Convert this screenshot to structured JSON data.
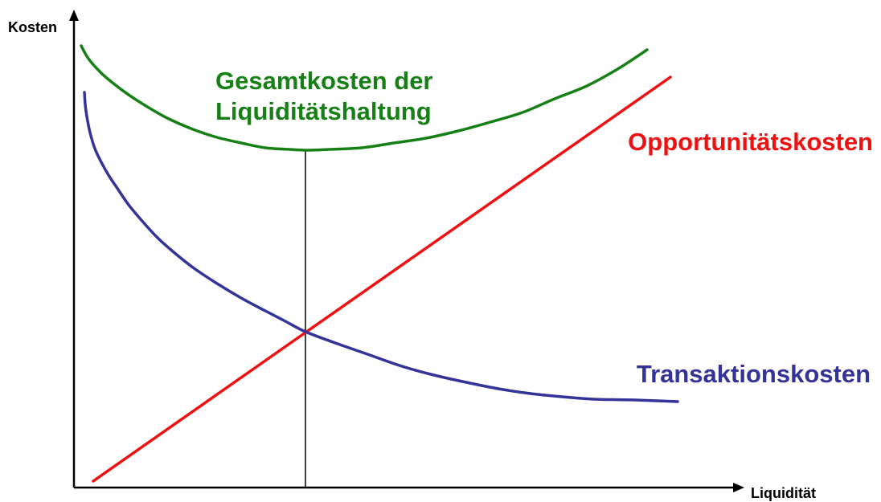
{
  "chart_data": {
    "type": "line",
    "title": "",
    "xlabel": "Liquidität",
    "ylabel": "Kosten",
    "grid": false,
    "legend": "none",
    "series": [
      {
        "name": "Gesamtkosten der Liquiditätshaltung",
        "label_lines": [
          "Gesamtkosten der",
          "Liquiditätshaltung"
        ],
        "color": "#168016",
        "points": [
          [
            101,
            57
          ],
          [
            110,
            73
          ],
          [
            125,
            90
          ],
          [
            140,
            103
          ],
          [
            160,
            118
          ],
          [
            185,
            134
          ],
          [
            210,
            148
          ],
          [
            240,
            161
          ],
          [
            270,
            171
          ],
          [
            300,
            178
          ],
          [
            330,
            184
          ],
          [
            360,
            186
          ],
          [
            380,
            187
          ],
          [
            410,
            186
          ],
          [
            450,
            184
          ],
          [
            490,
            178
          ],
          [
            530,
            172
          ],
          [
            570,
            163
          ],
          [
            610,
            152
          ],
          [
            650,
            140
          ],
          [
            690,
            123
          ],
          [
            730,
            107
          ],
          [
            770,
            85
          ],
          [
            805,
            62
          ]
        ]
      },
      {
        "name": "Opportunitätskosten",
        "label_lines": [
          "Opportunitätskosten"
        ],
        "color": "#ee1111",
        "points": [
          [
            116,
            599
          ],
          [
            380,
            414
          ],
          [
            834,
            96
          ]
        ]
      },
      {
        "name": "Transaktionskosten",
        "label_lines": [
          "Transaktionskosten"
        ],
        "color": "#333399",
        "points": [
          [
            105,
            115
          ],
          [
            106,
            130
          ],
          [
            108,
            145
          ],
          [
            112,
            165
          ],
          [
            118,
            185
          ],
          [
            125,
            200
          ],
          [
            135,
            218
          ],
          [
            145,
            233
          ],
          [
            160,
            255
          ],
          [
            175,
            273
          ],
          [
            195,
            295
          ],
          [
            215,
            313
          ],
          [
            240,
            333
          ],
          [
            270,
            353
          ],
          [
            300,
            371
          ],
          [
            330,
            387
          ],
          [
            355,
            400
          ],
          [
            380,
            413
          ],
          [
            420,
            428
          ],
          [
            460,
            442
          ],
          [
            500,
            456
          ],
          [
            540,
            467
          ],
          [
            580,
            476
          ],
          [
            620,
            484
          ],
          [
            660,
            490
          ],
          [
            700,
            494
          ],
          [
            740,
            497
          ],
          [
            790,
            498
          ],
          [
            843,
            500
          ]
        ]
      }
    ],
    "annotations": [
      {
        "type": "vertical-line",
        "x": 380,
        "y_from": 187,
        "y_to": 607,
        "meaning": "optimum"
      }
    ]
  }
}
